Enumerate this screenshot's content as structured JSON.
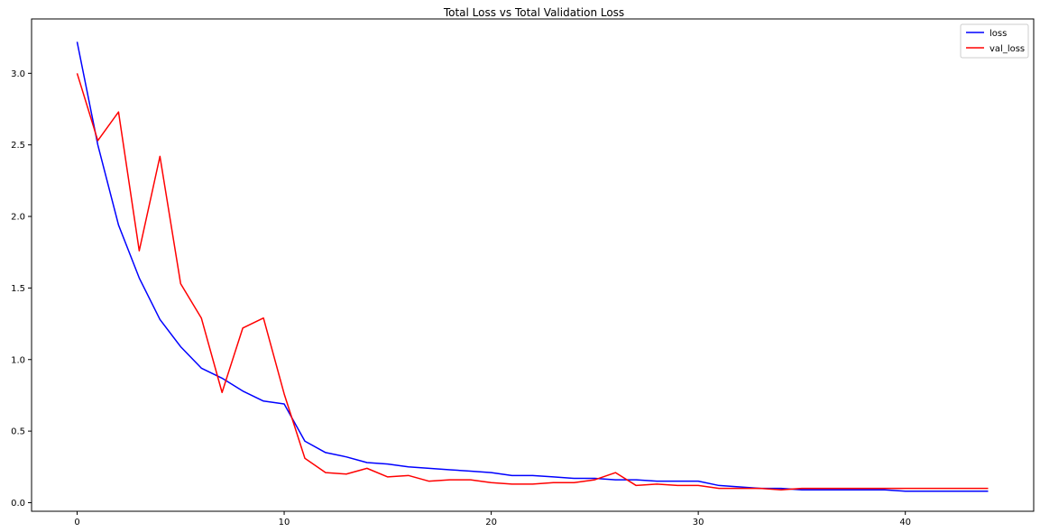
{
  "chart_data": {
    "type": "line",
    "title": "Total Loss vs Total Validation Loss",
    "xlabel": "",
    "ylabel": "",
    "xlim": [
      -2.2,
      46.2
    ],
    "ylim": [
      -0.06,
      3.38
    ],
    "xticks": [
      0,
      10,
      20,
      30,
      40
    ],
    "yticks": [
      0.0,
      0.5,
      1.0,
      1.5,
      2.0,
      2.5,
      3.0
    ],
    "xtick_labels": [
      "0",
      "10",
      "20",
      "30",
      "40"
    ],
    "ytick_labels": [
      "0.0",
      "0.5",
      "1.0",
      "1.5",
      "2.0",
      "2.5",
      "3.0"
    ],
    "grid": false,
    "legend_position": "top-right",
    "x": [
      0,
      1,
      2,
      3,
      4,
      5,
      6,
      7,
      8,
      9,
      10,
      11,
      12,
      13,
      14,
      15,
      16,
      17,
      18,
      19,
      20,
      21,
      22,
      23,
      24,
      25,
      26,
      27,
      28,
      29,
      30,
      31,
      32,
      33,
      34,
      35,
      36,
      37,
      38,
      39,
      40,
      41,
      42,
      43,
      44
    ],
    "series": [
      {
        "name": "loss",
        "color": "#0000ff",
        "values": [
          3.22,
          2.5,
          1.94,
          1.57,
          1.28,
          1.09,
          0.94,
          0.87,
          0.78,
          0.71,
          0.69,
          0.43,
          0.35,
          0.32,
          0.28,
          0.27,
          0.25,
          0.24,
          0.23,
          0.22,
          0.21,
          0.19,
          0.19,
          0.18,
          0.17,
          0.17,
          0.16,
          0.16,
          0.15,
          0.15,
          0.15,
          0.12,
          0.11,
          0.1,
          0.1,
          0.09,
          0.09,
          0.09,
          0.09,
          0.09,
          0.08,
          0.08,
          0.08,
          0.08,
          0.08
        ]
      },
      {
        "name": "val_loss",
        "color": "#ff0000",
        "values": [
          3.0,
          2.53,
          2.73,
          1.76,
          2.42,
          1.53,
          1.29,
          0.77,
          1.22,
          1.29,
          0.76,
          0.31,
          0.21,
          0.2,
          0.24,
          0.18,
          0.19,
          0.15,
          0.16,
          0.16,
          0.14,
          0.13,
          0.13,
          0.14,
          0.14,
          0.16,
          0.21,
          0.12,
          0.13,
          0.12,
          0.12,
          0.1,
          0.1,
          0.1,
          0.09,
          0.1,
          0.1,
          0.1,
          0.1,
          0.1,
          0.1,
          0.1,
          0.1,
          0.1,
          0.1
        ]
      }
    ]
  }
}
